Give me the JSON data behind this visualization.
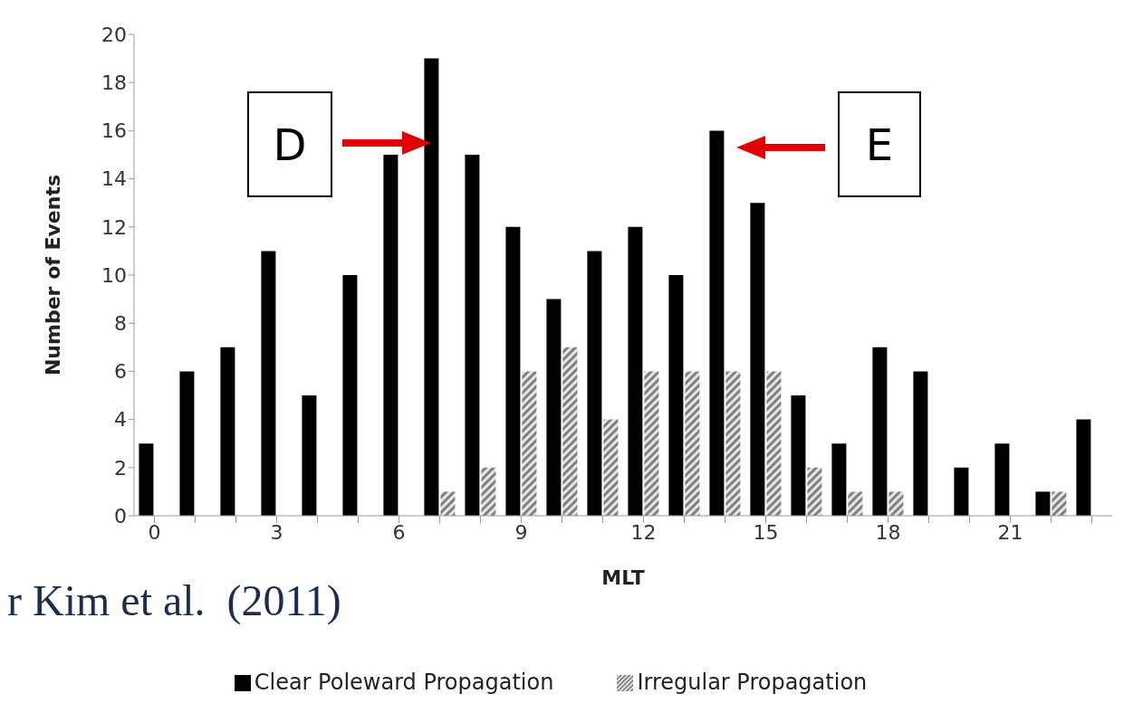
{
  "chart_data": {
    "type": "bar",
    "xlabel": "MLT",
    "ylabel": "Number of Events",
    "categories": [
      "0",
      null,
      null,
      "3",
      null,
      null,
      "6",
      null,
      null,
      "9",
      null,
      null,
      "12",
      null,
      null,
      "15",
      null,
      null,
      "18",
      null,
      null,
      "21",
      null,
      null
    ],
    "series": [
      {
        "name": "Clear Poleward Propagation",
        "color": "#000000",
        "values": [
          3,
          6,
          7,
          11,
          5,
          10,
          15,
          19,
          15,
          12,
          9,
          11,
          12,
          10,
          16,
          13,
          5,
          3,
          7,
          6,
          2,
          3,
          1,
          4
        ]
      },
      {
        "name": "Irregular Propagation",
        "color": "#808080",
        "values": [
          0,
          0,
          0,
          0,
          0,
          0,
          0,
          1,
          2,
          6,
          7,
          4,
          6,
          6,
          6,
          6,
          2,
          1,
          1,
          0,
          0,
          0,
          1,
          0
        ]
      }
    ],
    "ylim": [
      0,
      20
    ],
    "yticks": [
      0,
      2,
      4,
      6,
      8,
      10,
      12,
      14,
      16,
      18,
      20
    ],
    "grid": false,
    "legend": "bottom",
    "annotations": [
      "D",
      "E",
      "r Kim et al.  (2011)"
    ]
  }
}
